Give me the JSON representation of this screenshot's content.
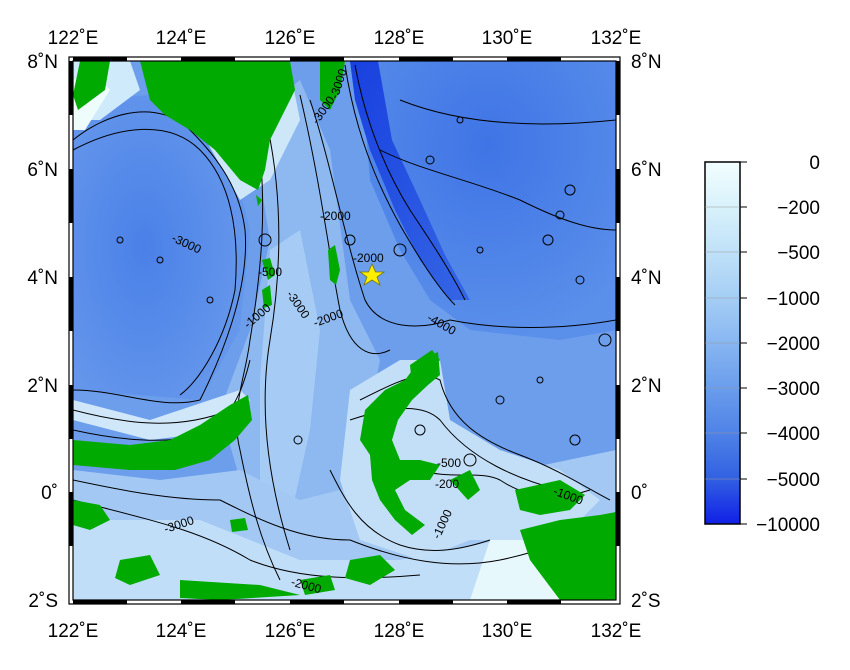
{
  "map": {
    "lon_range": [
      122,
      132
    ],
    "lat_range": [
      -2,
      8
    ],
    "top_lon_labels": [
      "122˚E",
      "124˚E",
      "126˚E",
      "128˚E",
      "130˚E",
      "132˚E"
    ],
    "bottom_lon_labels": [
      "122˚E",
      "124˚E",
      "126˚E",
      "128˚E",
      "130˚E",
      "132˚E"
    ],
    "left_lat_labels": [
      "8˚N",
      "6˚N",
      "4˚N",
      "2˚N",
      "0˚",
      "2˚S"
    ],
    "right_lat_labels": [
      "8˚N",
      "6˚N",
      "4˚N",
      "2˚N",
      "0˚",
      "2˚S"
    ],
    "land_color": "#00aa00",
    "marker": {
      "lon": 127.5,
      "lat": 4.0,
      "symbol": "star",
      "color": "#ffee00"
    },
    "contour_labels": [
      "-3000",
      "-3000",
      "-2000",
      "-2000",
      "-3000",
      "-500",
      "-3000",
      "-1000",
      "-2000",
      "-4000",
      "-500",
      "-200",
      "-1000",
      "-1000",
      "-3000",
      "-2000"
    ]
  },
  "colorbar": {
    "labels": [
      "0",
      "−200",
      "−500",
      "−1000",
      "−2000",
      "−3000",
      "−4000",
      "−5000",
      "−10000"
    ],
    "colors": [
      "#eefcfc",
      "#d6f0fa",
      "#bfe1f8",
      "#a5cdf5",
      "#86b3f0",
      "#6699ea",
      "#4a7de5",
      "#2f5fe0",
      "#1530e0"
    ]
  }
}
